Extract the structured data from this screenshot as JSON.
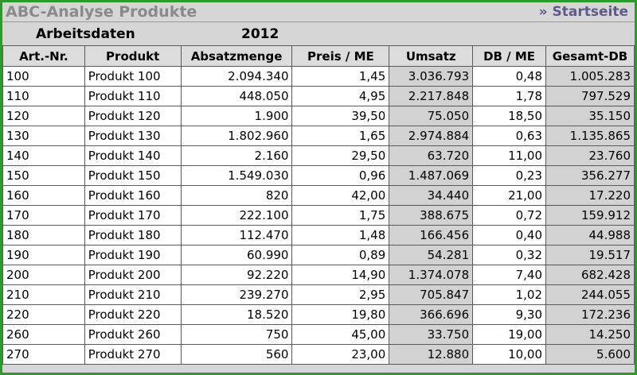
{
  "header": {
    "title": "ABC-Analyse Produkte",
    "start_link": "» Startseite"
  },
  "work": {
    "label": "Arbeitsdaten",
    "year": "2012"
  },
  "table": {
    "columns": [
      "Art.-Nr.",
      "Produkt",
      "Absatzmenge",
      "Preis / ME",
      "Umsatz",
      "DB / ME",
      "Gesamt-DB"
    ],
    "rows": [
      [
        "100",
        "Produkt 100",
        "2.094.340",
        "1,45",
        "3.036.793",
        "0,48",
        "1.005.283"
      ],
      [
        "110",
        "Produkt 110",
        "448.050",
        "4,95",
        "2.217.848",
        "1,78",
        "797.529"
      ],
      [
        "120",
        "Produkt 120",
        "1.900",
        "39,50",
        "75.050",
        "18,50",
        "35.150"
      ],
      [
        "130",
        "Produkt 130",
        "1.802.960",
        "1,65",
        "2.974.884",
        "0,63",
        "1.135.865"
      ],
      [
        "140",
        "Produkt 140",
        "2.160",
        "29,50",
        "63.720",
        "11,00",
        "23.760"
      ],
      [
        "150",
        "Produkt 150",
        "1.549.030",
        "0,96",
        "1.487.069",
        "0,23",
        "356.277"
      ],
      [
        "160",
        "Produkt 160",
        "820",
        "42,00",
        "34.440",
        "21,00",
        "17.220"
      ],
      [
        "170",
        "Produkt 170",
        "222.100",
        "1,75",
        "388.675",
        "0,72",
        "159.912"
      ],
      [
        "180",
        "Produkt 180",
        "112.470",
        "1,48",
        "166.456",
        "0,40",
        "44.988"
      ],
      [
        "190",
        "Produkt 190",
        "60.990",
        "0,89",
        "54.281",
        "0,32",
        "19.517"
      ],
      [
        "200",
        "Produkt 200",
        "92.220",
        "14,90",
        "1.374.078",
        "7,40",
        "682.428"
      ],
      [
        "210",
        "Produkt 210",
        "239.270",
        "2,95",
        "705.847",
        "1,02",
        "244.055"
      ],
      [
        "220",
        "Produkt 220",
        "18.520",
        "19,80",
        "366.696",
        "9,30",
        "172.236"
      ],
      [
        "260",
        "Produkt 260",
        "750",
        "45,00",
        "33.750",
        "19,00",
        "14.250"
      ],
      [
        "270",
        "Produkt 270",
        "560",
        "23,00",
        "12.880",
        "10,00",
        "5.600"
      ]
    ]
  }
}
